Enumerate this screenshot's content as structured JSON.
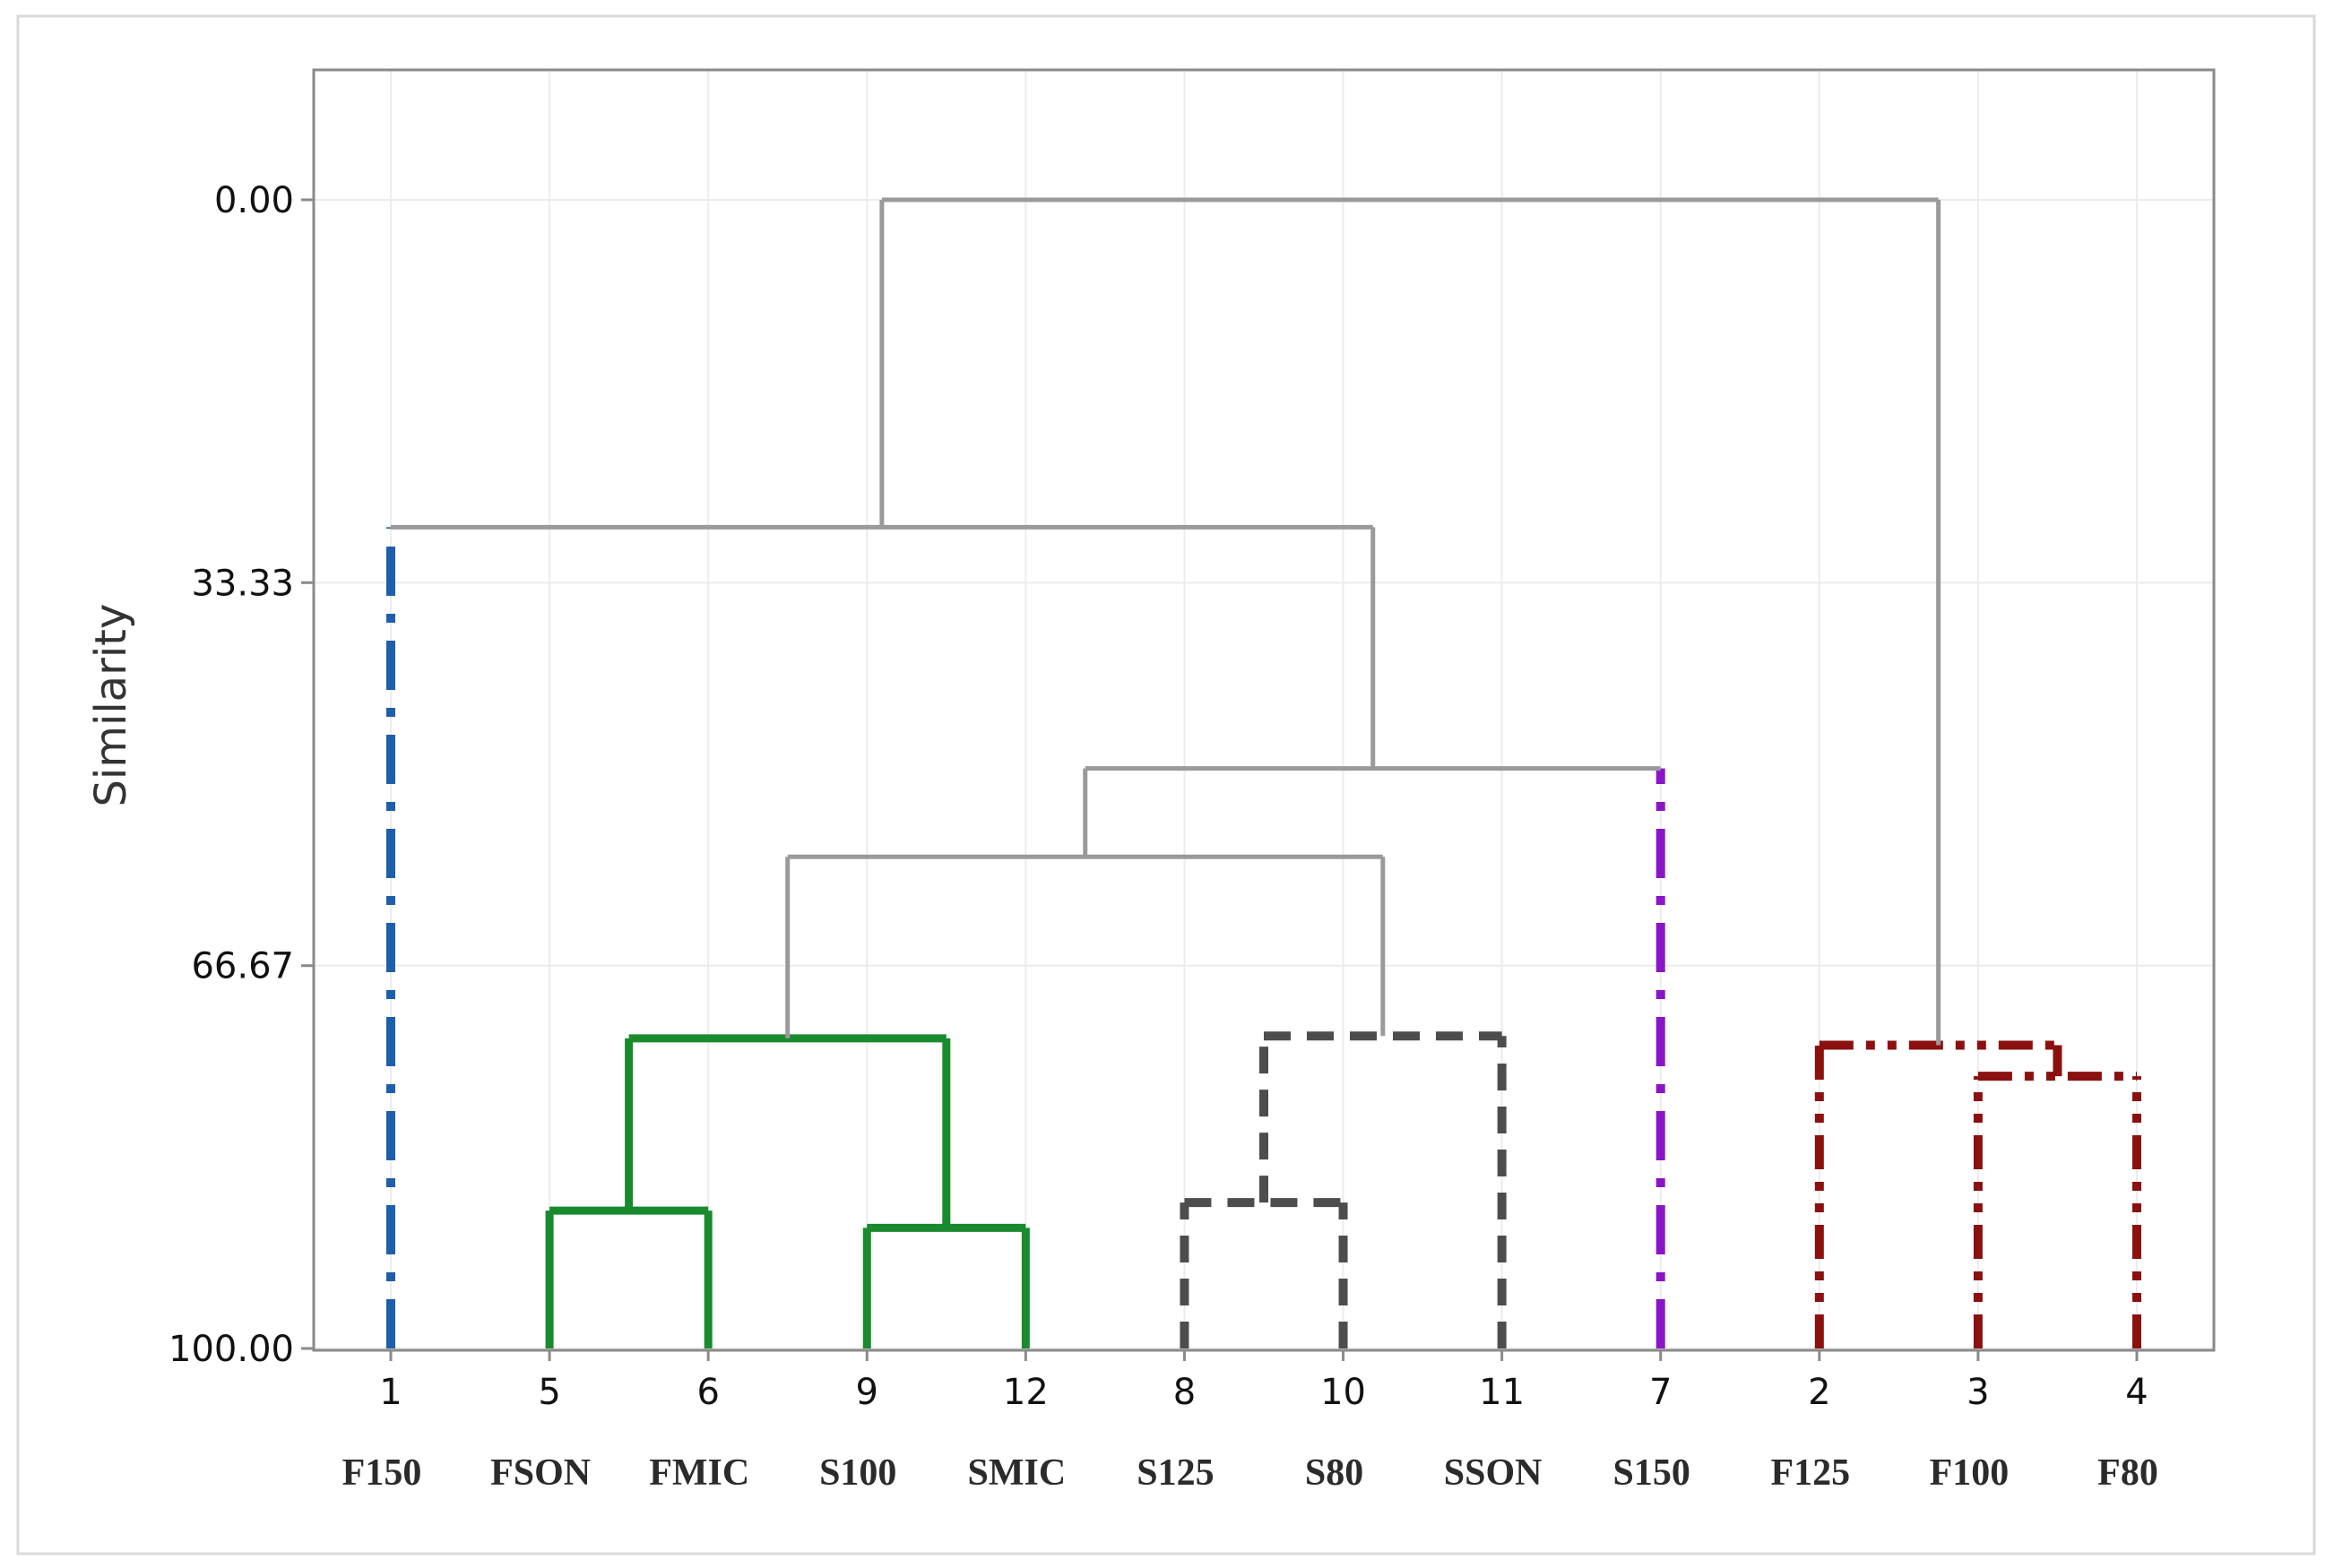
{
  "chart_data": {
    "type": "dendrogram",
    "title": "",
    "xlabel": "",
    "ylabel": "Similarity",
    "ylim": [
      100.0,
      0.0
    ],
    "yticks": [
      "0.00",
      "33.33",
      "66.67",
      "100.00"
    ],
    "ytick_values": [
      0.0,
      33.33,
      66.67,
      100.0
    ],
    "grid": true,
    "leaf_order": [
      1,
      5,
      6,
      9,
      12,
      8,
      10,
      11,
      7,
      2,
      3,
      4
    ],
    "leaf_labels": [
      "F150",
      "FSON",
      "FMIC",
      "S100",
      "SMIC",
      "S125",
      "S80",
      "SSON",
      "S150",
      "F125",
      "F100",
      "F80"
    ],
    "merges": [
      {
        "left": [
          5
        ],
        "right": [
          6
        ],
        "similarity": 88.0,
        "cluster": "green"
      },
      {
        "left": [
          9
        ],
        "right": [
          12
        ],
        "similarity": 89.5,
        "cluster": "green"
      },
      {
        "left": [
          5,
          6
        ],
        "right": [
          9,
          12
        ],
        "similarity": 73.0,
        "cluster": "green"
      },
      {
        "left": [
          8
        ],
        "right": [
          10
        ],
        "similarity": 87.3,
        "cluster": "darkgray"
      },
      {
        "left": [
          8,
          10
        ],
        "right": [
          11
        ],
        "similarity": 72.8,
        "cluster": "darkgray"
      },
      {
        "left": [
          3
        ],
        "right": [
          4
        ],
        "similarity": 76.3,
        "cluster": "darkred"
      },
      {
        "left": [
          2
        ],
        "right": [
          3,
          4
        ],
        "similarity": 73.6,
        "cluster": "darkred"
      },
      {
        "left": [
          5,
          6,
          9,
          12
        ],
        "right": [
          8,
          10,
          11
        ],
        "similarity": 57.2,
        "cluster": "gray"
      },
      {
        "left": [
          5,
          6,
          9,
          12,
          8,
          10,
          11
        ],
        "right": [
          7
        ],
        "similarity": 49.5,
        "cluster": "gray"
      },
      {
        "left": [
          1
        ],
        "right": [
          5,
          6,
          9,
          12,
          8,
          10,
          11,
          7
        ],
        "similarity": 28.5,
        "cluster": "gray"
      },
      {
        "left": [
          1,
          5,
          6,
          9,
          12,
          8,
          10,
          11,
          7
        ],
        "right": [
          2,
          3,
          4
        ],
        "similarity": 0.0,
        "cluster": "gray"
      }
    ],
    "cluster_colors": {
      "blue": "#1F5FAA",
      "green": "#1A8A2E",
      "darkgray": "#4D4D4D",
      "purple": "#8B14C7",
      "darkred": "#8B1010",
      "gray": "#9A9A9A"
    },
    "leaf_clusters": {
      "1": "blue",
      "5": "green",
      "6": "green",
      "9": "green",
      "12": "green",
      "8": "darkgray",
      "10": "darkgray",
      "11": "darkgray",
      "7": "purple",
      "2": "darkred",
      "3": "darkred",
      "4": "darkred"
    }
  }
}
